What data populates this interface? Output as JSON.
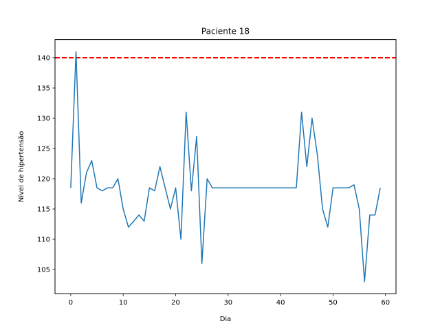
{
  "chart_data": {
    "type": "line",
    "title": "Paciente 18",
    "xlabel": "Dia",
    "ylabel": "Nível de hipertensão",
    "xlim": [
      -3,
      62
    ],
    "ylim": [
      101.0,
      143.0
    ],
    "xticks": [
      0,
      10,
      20,
      30,
      40,
      50,
      60
    ],
    "yticks": [
      105,
      110,
      115,
      120,
      125,
      130,
      135,
      140
    ],
    "grid": false,
    "series": [
      {
        "color": "#1f77b4",
        "x": [
          0,
          1,
          2,
          3,
          4,
          5,
          6,
          7,
          8,
          9,
          10,
          11,
          12,
          13,
          14,
          15,
          16,
          17,
          18,
          19,
          20,
          21,
          22,
          23,
          24,
          25,
          26,
          27,
          28,
          29,
          30,
          31,
          32,
          33,
          34,
          35,
          36,
          37,
          38,
          39,
          40,
          41,
          42,
          43,
          44,
          45,
          46,
          47,
          48,
          49,
          50,
          51,
          52,
          53,
          54,
          55,
          56,
          57,
          58,
          59
        ],
        "values": [
          118.5,
          141,
          116,
          121,
          123,
          118.5,
          118,
          118.5,
          118.5,
          120,
          115,
          112,
          113,
          114,
          113,
          118.5,
          118,
          122,
          118.5,
          115,
          118.5,
          110,
          131,
          118,
          127,
          106,
          120,
          118.5,
          118.5,
          118.5,
          118.5,
          118.5,
          118.5,
          118.5,
          118.5,
          118.5,
          118.5,
          118.5,
          118.5,
          118.5,
          118.5,
          118.5,
          118.5,
          118.5,
          131,
          122,
          130,
          124,
          115,
          112,
          118.5,
          118.5,
          118.5,
          118.5,
          119,
          115,
          103,
          114,
          114,
          118.5
        ]
      }
    ],
    "reference_line": {
      "y": 140,
      "color": "#ff0000",
      "style": "dashed"
    }
  }
}
